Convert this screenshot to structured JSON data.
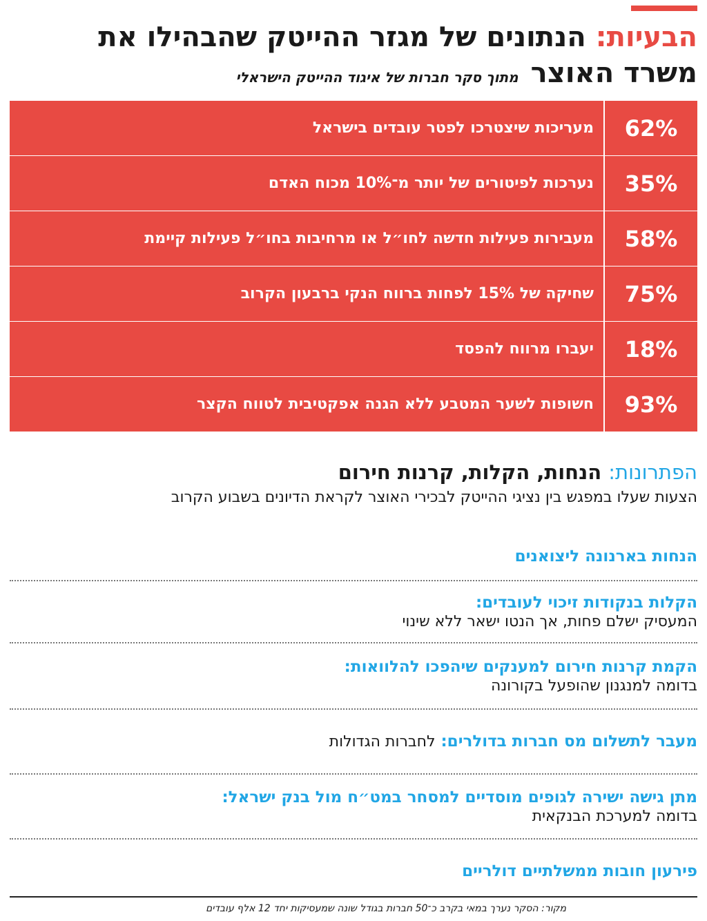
{
  "header": {
    "label": "הבעיות:",
    "title_line1": " הנתונים של מגזר ההייטק שהבהילו את",
    "title_line2": "משרד האוצר",
    "subtitle": "מתוך סקר חברות של איגוד ההייטק הישראלי"
  },
  "problems": [
    {
      "pct": "62%",
      "text": "מעריכות שיצטרכו לפטר עובדים בישראל"
    },
    {
      "pct": "35%",
      "text": "נערכות לפיטורים של יותר מ־10% מכוח האדם"
    },
    {
      "pct": "58%",
      "text": "מעבירות פעילות חדשה לחו״ל או מרחיבות בחו״ל פעילות קיימת"
    },
    {
      "pct": "75%",
      "text": "שחיקה של 15% לפחות ברווח הנקי ברבעון הקרוב"
    },
    {
      "pct": "18%",
      "text": "יעברו מרווח להפסד"
    },
    {
      "pct": "93%",
      "text": "חשופות לשער המטבע ללא הגנה אפקטיבית לטווח הקצר"
    }
  ],
  "solutions": {
    "label": "הפתרונות:",
    "title": " הנחות, הקלות, קרנות חירום",
    "subtitle": "הצעות שעלו במפגש בין נציגי ההייטק לבכירי האוצר לקראת הדיונים בשבוע הקרוב",
    "items": [
      {
        "title": "הנחות בארנונה ליצואנים",
        "desc": ""
      },
      {
        "title": "הקלות בנקודות זיכוי לעובדים:",
        "desc": "המעסיק ישלם פחות, אך הנטו ישאר ללא שינוי"
      },
      {
        "title": "הקמת קרנות חירום למענקים שיהפכו להלוואות:",
        "desc": "בדומה למנגנון שהופעל בקורונה"
      },
      {
        "title": "מעבר לתשלום מס חברות בדולרים:",
        "desc": "לחברות הגדולות"
      },
      {
        "title": "מתן גישה ישירה לגופים מוסדיים למסחר במט״ח מול בנק ישראל:",
        "desc": "בדומה למערכת הבנקאית"
      },
      {
        "title": "פירעון חובות ממשלתיים דולריים",
        "desc": ""
      }
    ]
  },
  "source": "מקור: הסקר נערך במאי בקרב כ־50 חברות בגודל שונה שמעסיקות יחד 12 אלף עובדים",
  "colors": {
    "accent_red": "#e84a43",
    "accent_blue": "#21a6e5"
  }
}
